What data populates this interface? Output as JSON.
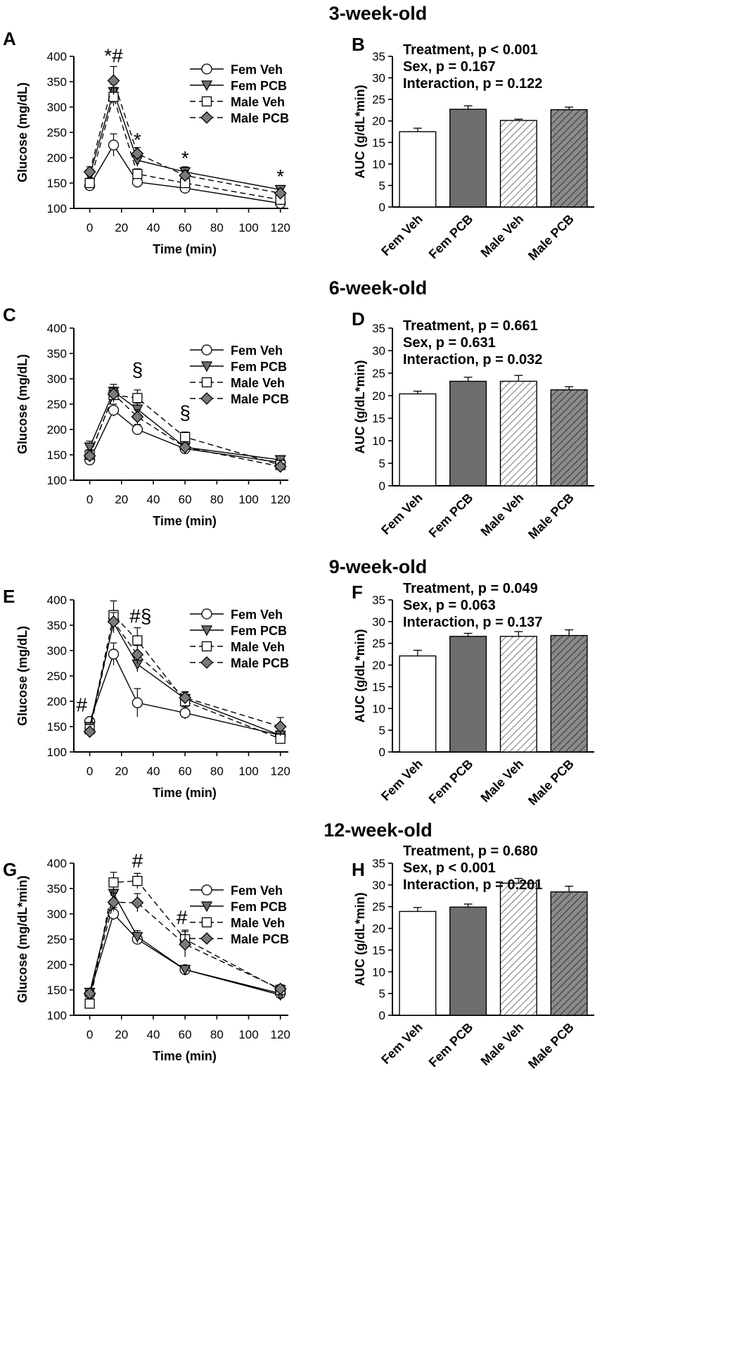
{
  "figure": {
    "row_titles": [
      "3-week-old",
      "6-week-old",
      "9-week-old",
      "12-week-old"
    ],
    "panel_letters": [
      "A",
      "B",
      "C",
      "D",
      "E",
      "F",
      "G",
      "H"
    ]
  },
  "colors": {
    "fem_veh_fill": "#ffffff",
    "fem_pcb_fill": "#6e6e6e",
    "male_veh_fill": "#ffffff",
    "male_pcb_fill": "#7a7a7a",
    "line": "#000000",
    "hatch": "#555555"
  },
  "chart_data": [
    {
      "panel": "A",
      "type": "line",
      "row_title": "3-week-old",
      "xlabel": "Time (min)",
      "ylabel": "Glucose (mg/dL)",
      "xlim": [
        -10,
        125
      ],
      "ylim": [
        100,
        400
      ],
      "xticks": [
        0,
        20,
        40,
        60,
        80,
        100,
        120
      ],
      "yticks": [
        100,
        150,
        200,
        250,
        300,
        350,
        400
      ],
      "legend": "top-right",
      "x": [
        0,
        15,
        30,
        60,
        120
      ],
      "series": [
        {
          "name": "Fem Veh",
          "marker": "circle",
          "dash": "solid",
          "values": [
            145,
            225,
            152,
            140,
            110
          ],
          "errors": [
            8,
            22,
            10,
            8,
            6
          ]
        },
        {
          "name": "Fem PCB",
          "marker": "triangle-down",
          "dash": "solid",
          "values": [
            165,
            330,
            195,
            172,
            137
          ],
          "errors": [
            12,
            15,
            12,
            10,
            8
          ]
        },
        {
          "name": "Male Veh",
          "marker": "square",
          "dash": "dashed",
          "values": [
            150,
            320,
            168,
            150,
            117
          ],
          "errors": [
            10,
            18,
            10,
            8,
            6
          ]
        },
        {
          "name": "Male PCB",
          "marker": "diamond",
          "dash": "dashed",
          "values": [
            172,
            352,
            208,
            165,
            130
          ],
          "errors": [
            10,
            28,
            12,
            10,
            8
          ]
        }
      ],
      "annotations": [
        {
          "text": "*#",
          "x": 15,
          "y": 388
        },
        {
          "text": "*",
          "x": 30,
          "y": 222
        },
        {
          "text": "*",
          "x": 60,
          "y": 186
        },
        {
          "text": "*",
          "x": 120,
          "y": 150
        }
      ]
    },
    {
      "panel": "B",
      "type": "bar",
      "row_title": "3-week-old",
      "ylabel": "AUC (g/dL*min)",
      "ylim": [
        0,
        35
      ],
      "yticks": [
        0,
        5,
        10,
        15,
        20,
        25,
        30,
        35
      ],
      "categories": [
        "Fem Veh",
        "Fem PCB",
        "Male Veh",
        "Male PCB"
      ],
      "values": [
        17.5,
        22.7,
        20.1,
        22.6
      ],
      "errors": [
        0.8,
        0.8,
        0.3,
        0.6
      ],
      "stats": [
        "Treatment,  p < 0.001",
        "Sex,  p = 0.167",
        "Interaction,  p = 0.122"
      ]
    },
    {
      "panel": "C",
      "type": "line",
      "row_title": "6-week-old",
      "xlabel": "Time (min)",
      "ylabel": "Glucose (mg/dL)",
      "xlim": [
        -10,
        125
      ],
      "ylim": [
        100,
        400
      ],
      "xticks": [
        0,
        20,
        40,
        60,
        80,
        100,
        120
      ],
      "yticks": [
        100,
        150,
        200,
        250,
        300,
        350,
        400
      ],
      "legend": "top-right",
      "x": [
        0,
        15,
        30,
        60,
        120
      ],
      "series": [
        {
          "name": "Fem Veh",
          "marker": "circle",
          "dash": "solid",
          "values": [
            140,
            238,
            200,
            162,
            135
          ],
          "errors": [
            6,
            12,
            10,
            6,
            6
          ]
        },
        {
          "name": "Fem PCB",
          "marker": "triangle-down",
          "dash": "solid",
          "values": [
            165,
            275,
            240,
            165,
            140
          ],
          "errors": [
            12,
            14,
            12,
            8,
            8
          ]
        },
        {
          "name": "Male Veh",
          "marker": "square",
          "dash": "dashed",
          "values": [
            150,
            268,
            262,
            185,
            130
          ],
          "errors": [
            10,
            14,
            16,
            10,
            6
          ]
        },
        {
          "name": "Male PCB",
          "marker": "diamond",
          "dash": "dashed",
          "values": [
            148,
            270,
            225,
            165,
            127
          ],
          "errors": [
            8,
            12,
            14,
            6,
            6
          ]
        }
      ],
      "annotations": [
        {
          "text": "§",
          "x": 30,
          "y": 305
        },
        {
          "text": "§",
          "x": 60,
          "y": 220
        }
      ]
    },
    {
      "panel": "D",
      "type": "bar",
      "row_title": "6-week-old",
      "ylabel": "AUC (g/dL*min)",
      "ylim": [
        0,
        35
      ],
      "yticks": [
        0,
        5,
        10,
        15,
        20,
        25,
        30,
        35
      ],
      "categories": [
        "Fem Veh",
        "Fem PCB",
        "Male Veh",
        "Male PCB"
      ],
      "values": [
        20.4,
        23.2,
        23.2,
        21.3
      ],
      "errors": [
        0.6,
        0.9,
        1.3,
        0.7
      ],
      "stats": [
        "Treatment,  p = 0.661",
        "Sex,  p = 0.631",
        "Interaction,  p = 0.032"
      ]
    },
    {
      "panel": "E",
      "type": "line",
      "row_title": "9-week-old",
      "xlabel": "Time (min)",
      "ylabel": "Glucose (mg/dL)",
      "xlim": [
        -10,
        125
      ],
      "ylim": [
        100,
        400
      ],
      "xticks": [
        0,
        20,
        40,
        60,
        80,
        100,
        120
      ],
      "yticks": [
        100,
        150,
        200,
        250,
        300,
        350,
        400
      ],
      "legend": "top-right",
      "x": [
        0,
        15,
        30,
        60,
        120
      ],
      "series": [
        {
          "name": "Fem Veh",
          "marker": "circle",
          "dash": "solid",
          "values": [
            160,
            293,
            197,
            177,
            133
          ],
          "errors": [
            5,
            22,
            28,
            12,
            6
          ]
        },
        {
          "name": "Fem PCB",
          "marker": "triangle-down",
          "dash": "solid",
          "values": [
            150,
            355,
            273,
            205,
            133
          ],
          "errors": [
            8,
            20,
            15,
            12,
            8
          ]
        },
        {
          "name": "Male Veh",
          "marker": "square",
          "dash": "dashed",
          "values": [
            145,
            370,
            320,
            200,
            126
          ],
          "errors": [
            8,
            28,
            25,
            12,
            6
          ]
        },
        {
          "name": "Male PCB",
          "marker": "diamond",
          "dash": "dashed",
          "values": [
            140,
            357,
            292,
            207,
            150
          ],
          "errors": [
            6,
            18,
            18,
            12,
            18
          ]
        }
      ],
      "annotations": [
        {
          "text": "#",
          "x": -5,
          "y": 180
        },
        {
          "text": "#§",
          "x": 32,
          "y": 355
        }
      ]
    },
    {
      "panel": "F",
      "type": "bar",
      "row_title": "9-week-old",
      "ylabel": "AUC (g/dL*min)",
      "ylim": [
        0,
        35
      ],
      "yticks": [
        0,
        5,
        10,
        15,
        20,
        25,
        30,
        35
      ],
      "categories": [
        "Fem Veh",
        "Fem PCB",
        "Male Veh",
        "Male PCB"
      ],
      "values": [
        22.1,
        26.6,
        26.6,
        26.8
      ],
      "errors": [
        1.3,
        0.7,
        1.1,
        1.3
      ],
      "stats": [
        "Treatment,  p = 0.049",
        "Sex,  p = 0.063",
        "Interaction,  p = 0.137"
      ]
    },
    {
      "panel": "G",
      "type": "line",
      "row_title": "12-week-old",
      "xlabel": "Time (min)",
      "ylabel": "Glucose (mg/dL*min)",
      "xlim": [
        -10,
        125
      ],
      "ylim": [
        100,
        400
      ],
      "xticks": [
        0,
        20,
        40,
        60,
        80,
        100,
        120
      ],
      "yticks": [
        100,
        150,
        200,
        250,
        300,
        350,
        400
      ],
      "legend": "top-right",
      "x": [
        0,
        15,
        30,
        60,
        120
      ],
      "series": [
        {
          "name": "Fem Veh",
          "marker": "circle",
          "dash": "solid",
          "values": [
            142,
            300,
            250,
            190,
            143
          ],
          "errors": [
            6,
            12,
            10,
            8,
            6
          ]
        },
        {
          "name": "Fem PCB",
          "marker": "triangle-down",
          "dash": "solid",
          "values": [
            145,
            340,
            255,
            190,
            140
          ],
          "errors": [
            6,
            18,
            12,
            8,
            6
          ]
        },
        {
          "name": "Male Veh",
          "marker": "square",
          "dash": "dashed",
          "values": [
            123,
            362,
            365,
            250,
            150
          ],
          "errors": [
            6,
            20,
            15,
            18,
            8
          ]
        },
        {
          "name": "Male PCB",
          "marker": "diamond",
          "dash": "dashed",
          "values": [
            143,
            323,
            322,
            240,
            152
          ],
          "errors": [
            6,
            18,
            18,
            25,
            8
          ]
        }
      ],
      "annotations": [
        {
          "text": "#",
          "x": 30,
          "y": 392
        },
        {
          "text": "#",
          "x": 58,
          "y": 280
        }
      ]
    },
    {
      "panel": "H",
      "type": "bar",
      "row_title": "12-week-old",
      "ylabel": "AUC (g/dL*min)",
      "ylim": [
        0,
        35
      ],
      "yticks": [
        0,
        5,
        10,
        15,
        20,
        25,
        30,
        35
      ],
      "categories": [
        "Fem Veh",
        "Fem PCB",
        "Male Veh",
        "Male PCB"
      ],
      "values": [
        23.9,
        24.9,
        30.4,
        28.4
      ],
      "errors": [
        0.9,
        0.7,
        1.1,
        1.3
      ],
      "stats": [
        "Treatment,  p = 0.680",
        "Sex,  p < 0.001",
        "Interaction,  p = 0.201"
      ]
    }
  ]
}
